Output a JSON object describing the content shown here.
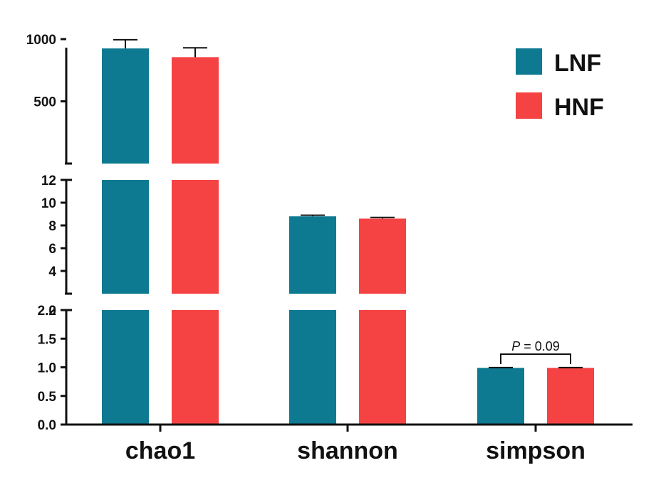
{
  "chart_data": {
    "type": "bar",
    "broken_axis": true,
    "categories": [
      "chao1",
      "shannon",
      "simpson"
    ],
    "series": [
      {
        "name": "LNF",
        "color": "#0d7a91",
        "values": [
          925,
          8.8,
          0.99
        ],
        "errors": [
          70,
          0.1,
          0.005
        ]
      },
      {
        "name": "HNF",
        "color": "#f54343",
        "values": [
          855,
          8.6,
          0.99
        ],
        "errors": [
          75,
          0.1,
          0.005
        ]
      }
    ],
    "segments": [
      {
        "range": [
          0,
          2
        ],
        "ticks": [
          0,
          0.5,
          1,
          1.5,
          2
        ],
        "labels": [
          "0.0",
          "0.5",
          "1.0",
          "1.5",
          "2.0"
        ]
      },
      {
        "range": [
          2,
          12
        ],
        "ticks": [
          2,
          4,
          6,
          8,
          10,
          12
        ],
        "labels": [
          "2",
          "4",
          "6",
          "8",
          "10",
          "12"
        ]
      },
      {
        "range": [
          0,
          1200
        ],
        "ticks": [
          500,
          1000
        ],
        "labels": [
          "500",
          "1000"
        ]
      }
    ],
    "annotation": {
      "text": "= 0.09",
      "italic_prefix": "P",
      "category": "simpson"
    },
    "title": "",
    "xlabel": "",
    "ylabel": "",
    "legend_position": "top-right"
  }
}
